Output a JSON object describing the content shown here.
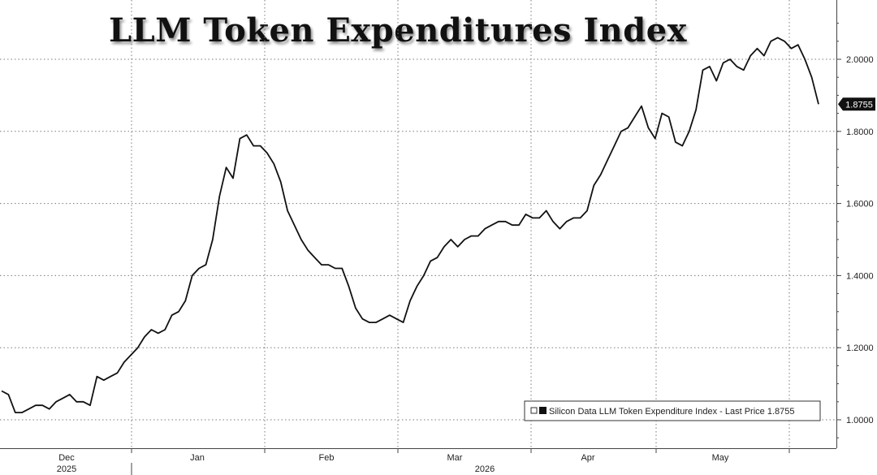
{
  "chart_data": {
    "type": "line",
    "title": "LLM Token Expenditures Index",
    "series": [
      {
        "name": "Silicon Data LLM Token Expenditure Index",
        "values": [
          1.08,
          1.07,
          1.02,
          1.02,
          1.03,
          1.04,
          1.04,
          1.03,
          1.05,
          1.06,
          1.07,
          1.05,
          1.05,
          1.04,
          1.12,
          1.11,
          1.12,
          1.13,
          1.16,
          1.18,
          1.2,
          1.23,
          1.25,
          1.24,
          1.25,
          1.29,
          1.3,
          1.33,
          1.4,
          1.42,
          1.43,
          1.5,
          1.62,
          1.7,
          1.67,
          1.78,
          1.79,
          1.76,
          1.76,
          1.74,
          1.71,
          1.66,
          1.58,
          1.54,
          1.5,
          1.47,
          1.45,
          1.43,
          1.43,
          1.42,
          1.42,
          1.37,
          1.31,
          1.28,
          1.27,
          1.27,
          1.28,
          1.29,
          1.28,
          1.27,
          1.33,
          1.37,
          1.4,
          1.44,
          1.45,
          1.48,
          1.5,
          1.48,
          1.5,
          1.51,
          1.51,
          1.53,
          1.54,
          1.55,
          1.55,
          1.54,
          1.54,
          1.57,
          1.56,
          1.56,
          1.58,
          1.55,
          1.53,
          1.55,
          1.56,
          1.56,
          1.58,
          1.65,
          1.68,
          1.72,
          1.76,
          1.8,
          1.81,
          1.84,
          1.87,
          1.81,
          1.78,
          1.85,
          1.84,
          1.77,
          1.76,
          1.8,
          1.86,
          1.97,
          1.98,
          1.94,
          1.99,
          2.0,
          1.98,
          1.97,
          2.01,
          2.03,
          2.01,
          2.05,
          2.06,
          2.05,
          2.03,
          2.04,
          2.0,
          1.95,
          1.8755
        ]
      }
    ],
    "x_tick_labels": [
      "Dec",
      "Jan",
      "Feb",
      "Mar",
      "Apr",
      "May"
    ],
    "x_year_labels": [
      "2025",
      "2026"
    ],
    "y_ticks": [
      1.0,
      1.2,
      1.4,
      1.6,
      1.8,
      2.0
    ],
    "y_tick_labels": [
      "1.0000",
      "1.2000",
      "1.4000",
      "1.6000",
      "1.8000",
      "2.0000"
    ],
    "ylim": [
      0.9,
      2.15
    ],
    "last_value_label": "1.8755",
    "legend": {
      "text": "Silicon Data LLM Token Expenditure Index - Last Price 1.8755",
      "placement": "bottom-right"
    },
    "grid": true,
    "y_axis_side": "right"
  }
}
